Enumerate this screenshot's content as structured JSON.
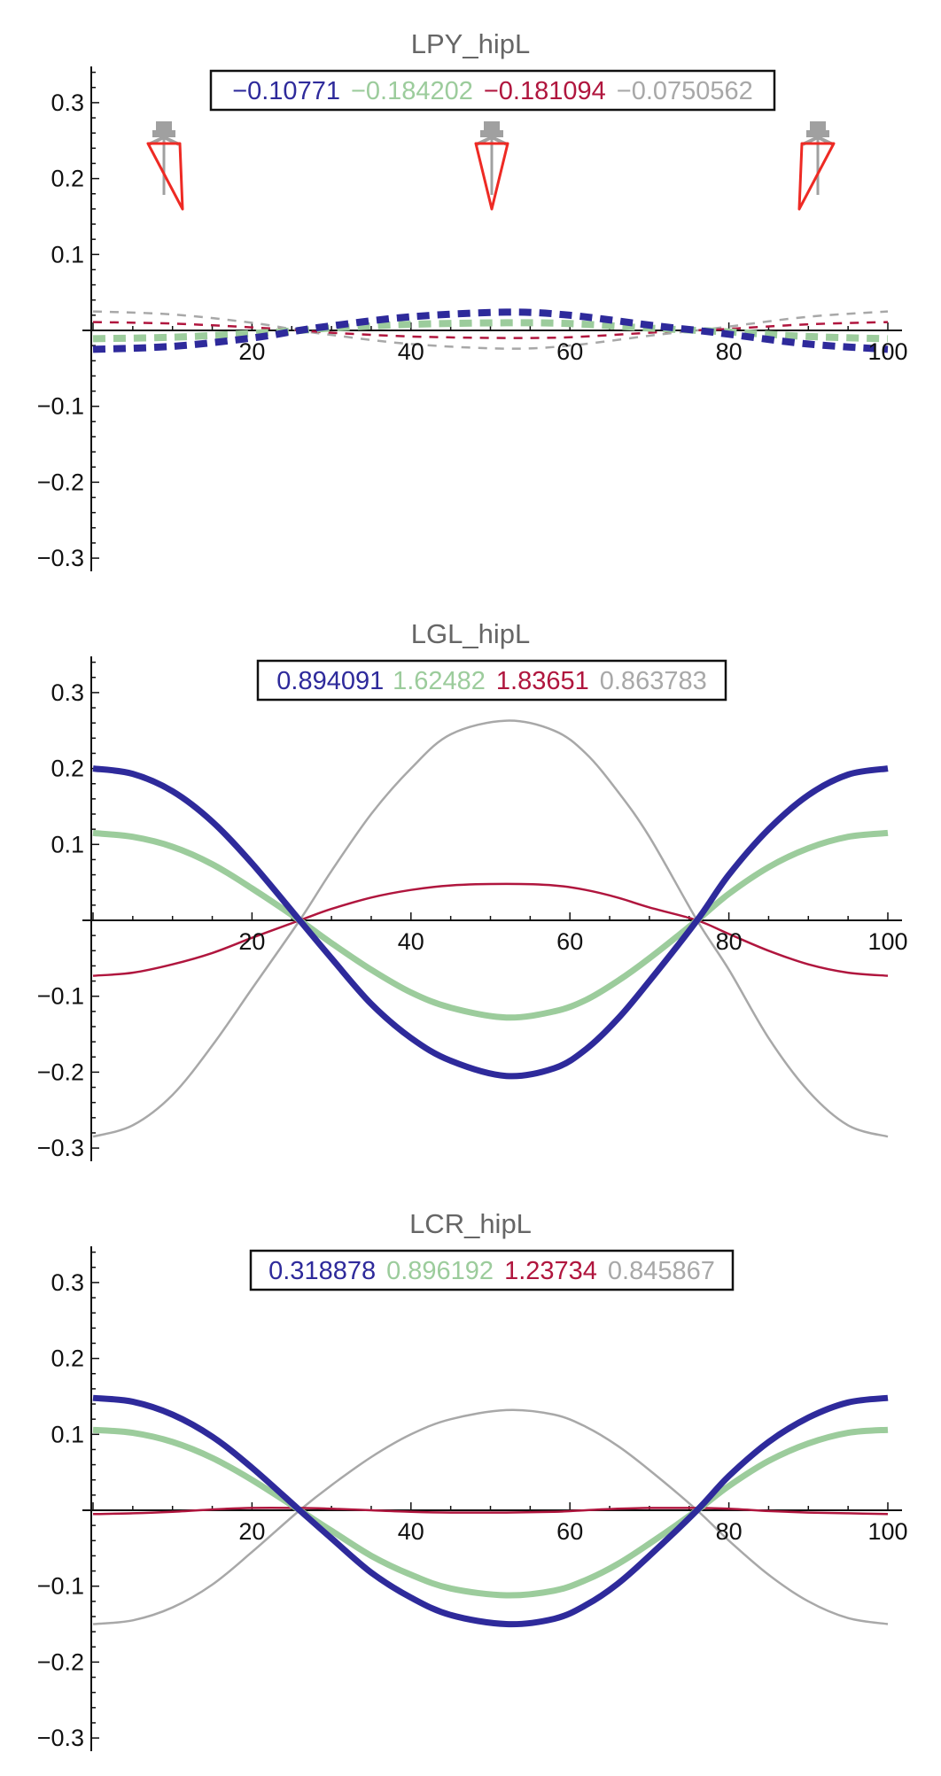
{
  "chart_data": [
    {
      "type": "line",
      "title": "LPY_hipL",
      "xlim": [
        0,
        100
      ],
      "ylim": [
        -0.3,
        0.3
      ],
      "y_ticks": [
        0.3,
        0.2,
        0.1,
        -0.1,
        -0.2,
        -0.3
      ],
      "y_tick_labels": [
        "0.3",
        "0.2",
        "0.1",
        "−0.1",
        "−0.2",
        "−0.3"
      ],
      "x_ticks": [
        20,
        40,
        60,
        80,
        100
      ],
      "x_tick_labels": [
        "20",
        "40",
        "60",
        "80",
        "100"
      ],
      "grid": false,
      "legend_placement": "top-center",
      "legend": [
        "−0.10771",
        "−0.184202",
        "−0.181094",
        "−0.0750562"
      ],
      "series": [
        {
          "color": "#2e2a9b",
          "style": "dashed-thick",
          "x": [
            0,
            10,
            20,
            26,
            30,
            40,
            52,
            60,
            70,
            76,
            80,
            90,
            100
          ],
          "y": [
            -0.025,
            -0.021,
            -0.01,
            0.0,
            0.006,
            0.018,
            0.024,
            0.02,
            0.007,
            0.0,
            -0.005,
            -0.018,
            -0.025
          ]
        },
        {
          "color": "#9ccc9c",
          "style": "dashed-thick",
          "x": [
            0,
            10,
            20,
            26,
            30,
            40,
            52,
            60,
            70,
            76,
            80,
            90,
            100
          ],
          "y": [
            -0.011,
            -0.009,
            -0.004,
            0.0,
            0.003,
            0.008,
            0.01,
            0.009,
            0.003,
            0.0,
            -0.002,
            -0.008,
            -0.011
          ]
        },
        {
          "color": "#b0163e",
          "style": "dashed-thin",
          "x": [
            0,
            10,
            20,
            26,
            30,
            40,
            52,
            60,
            70,
            76,
            80,
            90,
            100
          ],
          "y": [
            0.011,
            0.009,
            0.004,
            0.0,
            -0.003,
            -0.008,
            -0.01,
            -0.009,
            -0.003,
            0.0,
            0.002,
            0.008,
            0.011
          ]
        },
        {
          "color": "#a8a8a8",
          "style": "dashed-thin",
          "x": [
            0,
            10,
            20,
            26,
            30,
            40,
            52,
            60,
            70,
            76,
            80,
            90,
            100
          ],
          "y": [
            0.025,
            0.021,
            0.01,
            0.0,
            -0.006,
            -0.018,
            -0.024,
            -0.02,
            -0.007,
            0.0,
            0.005,
            0.018,
            0.025
          ]
        }
      ]
    },
    {
      "type": "line",
      "title": "LGL_hipL",
      "xlim": [
        0,
        100
      ],
      "ylim": [
        -0.3,
        0.3
      ],
      "y_ticks": [
        0.3,
        0.2,
        0.1,
        -0.1,
        -0.2,
        -0.3
      ],
      "y_tick_labels": [
        "0.3",
        "0.2",
        "0.1",
        "−0.1",
        "−0.2",
        "−0.3"
      ],
      "x_ticks": [
        20,
        40,
        60,
        80,
        100
      ],
      "x_tick_labels": [
        "20",
        "40",
        "60",
        "80",
        "100"
      ],
      "grid": false,
      "legend_placement": "top-center",
      "legend": [
        "0.894091",
        "1.62482",
        "1.83651",
        "0.863783"
      ],
      "series": [
        {
          "color": "#2e2a9b",
          "style": "solid-thick",
          "x": [
            0,
            5,
            10,
            15,
            20,
            26,
            30,
            35,
            40,
            45,
            52,
            58,
            62,
            66,
            70,
            76,
            80,
            85,
            90,
            95,
            100
          ],
          "y": [
            0.2,
            0.193,
            0.17,
            0.13,
            0.075,
            0.0,
            -0.05,
            -0.11,
            -0.155,
            -0.185,
            -0.205,
            -0.195,
            -0.17,
            -0.13,
            -0.08,
            0.0,
            0.06,
            0.12,
            0.165,
            0.192,
            0.2
          ]
        },
        {
          "color": "#9ccc9c",
          "style": "solid-thick",
          "x": [
            0,
            5,
            10,
            15,
            20,
            26,
            30,
            35,
            40,
            45,
            52,
            58,
            62,
            66,
            70,
            76,
            80,
            85,
            90,
            95,
            100
          ],
          "y": [
            0.115,
            0.11,
            0.097,
            0.074,
            0.042,
            0.0,
            -0.03,
            -0.065,
            -0.095,
            -0.115,
            -0.128,
            -0.12,
            -0.105,
            -0.08,
            -0.05,
            0.0,
            0.035,
            0.07,
            0.095,
            0.11,
            0.115
          ]
        },
        {
          "color": "#b0163e",
          "style": "solid-thin",
          "x": [
            0,
            5,
            10,
            15,
            20,
            26,
            30,
            35,
            40,
            45,
            52,
            58,
            62,
            66,
            70,
            76,
            80,
            85,
            90,
            95,
            100
          ],
          "y": [
            -0.073,
            -0.069,
            -0.058,
            -0.043,
            -0.023,
            0.0,
            0.015,
            0.03,
            0.04,
            0.046,
            0.048,
            0.046,
            0.04,
            0.03,
            0.017,
            0.0,
            -0.018,
            -0.04,
            -0.058,
            -0.069,
            -0.073
          ]
        },
        {
          "color": "#a8a8a8",
          "style": "solid-thin",
          "x": [
            0,
            5,
            10,
            15,
            20,
            26,
            30,
            35,
            40,
            45,
            52,
            58,
            62,
            66,
            70,
            76,
            80,
            85,
            90,
            95,
            100
          ],
          "y": [
            -0.285,
            -0.27,
            -0.23,
            -0.165,
            -0.09,
            0.0,
            0.065,
            0.14,
            0.2,
            0.245,
            0.263,
            0.25,
            0.22,
            0.17,
            0.11,
            0.0,
            -0.065,
            -0.155,
            -0.225,
            -0.27,
            -0.285
          ]
        }
      ]
    },
    {
      "type": "line",
      "title": "LCR_hipL",
      "xlim": [
        0,
        100
      ],
      "ylim": [
        -0.3,
        0.3
      ],
      "y_ticks": [
        0.3,
        0.2,
        0.1,
        -0.1,
        -0.2,
        -0.3
      ],
      "y_tick_labels": [
        "0.3",
        "0.2",
        "0.1",
        "−0.1",
        "−0.2",
        "−0.3"
      ],
      "x_ticks": [
        20,
        40,
        60,
        80,
        100
      ],
      "x_tick_labels": [
        "20",
        "40",
        "60",
        "80",
        "100"
      ],
      "grid": false,
      "legend_placement": "top-center",
      "legend": [
        "0.318878",
        "0.896192",
        "1.23734",
        "0.845867"
      ],
      "series": [
        {
          "color": "#2e2a9b",
          "style": "solid-thick",
          "x": [
            0,
            5,
            10,
            15,
            20,
            26,
            30,
            35,
            40,
            45,
            52,
            58,
            62,
            66,
            70,
            76,
            80,
            85,
            90,
            95,
            100
          ],
          "y": [
            0.148,
            0.143,
            0.126,
            0.097,
            0.056,
            0.0,
            -0.037,
            -0.082,
            -0.115,
            -0.138,
            -0.15,
            -0.143,
            -0.125,
            -0.097,
            -0.06,
            0.0,
            0.045,
            0.09,
            0.122,
            0.142,
            0.148
          ]
        },
        {
          "color": "#9ccc9c",
          "style": "solid-thick",
          "x": [
            0,
            5,
            10,
            15,
            20,
            26,
            30,
            35,
            40,
            45,
            52,
            58,
            62,
            66,
            70,
            76,
            80,
            85,
            90,
            95,
            100
          ],
          "y": [
            0.106,
            0.102,
            0.09,
            0.069,
            0.04,
            0.0,
            -0.027,
            -0.06,
            -0.085,
            -0.103,
            -0.112,
            -0.106,
            -0.092,
            -0.071,
            -0.044,
            0.0,
            0.032,
            0.065,
            0.088,
            0.102,
            0.106
          ]
        },
        {
          "color": "#b0163e",
          "style": "solid-thin",
          "x": [
            0,
            5,
            10,
            15,
            20,
            26,
            30,
            35,
            40,
            45,
            52,
            58,
            62,
            66,
            70,
            76,
            80,
            85,
            90,
            95,
            100
          ],
          "y": [
            -0.005,
            -0.004,
            -0.002,
            0.001,
            0.003,
            0.003,
            0.002,
            0.0,
            -0.002,
            -0.003,
            -0.003,
            -0.002,
            0.0,
            0.002,
            0.003,
            0.003,
            0.002,
            -0.001,
            -0.003,
            -0.004,
            -0.005
          ]
        },
        {
          "color": "#a8a8a8",
          "style": "solid-thin",
          "x": [
            0,
            5,
            10,
            15,
            20,
            26,
            30,
            35,
            40,
            45,
            52,
            58,
            62,
            66,
            70,
            76,
            80,
            85,
            90,
            95,
            100
          ],
          "y": [
            -0.15,
            -0.145,
            -0.128,
            -0.098,
            -0.055,
            0.0,
            0.033,
            0.07,
            0.1,
            0.12,
            0.132,
            0.126,
            0.11,
            0.085,
            0.053,
            0.0,
            -0.04,
            -0.085,
            -0.12,
            -0.142,
            -0.15
          ]
        }
      ]
    }
  ]
}
